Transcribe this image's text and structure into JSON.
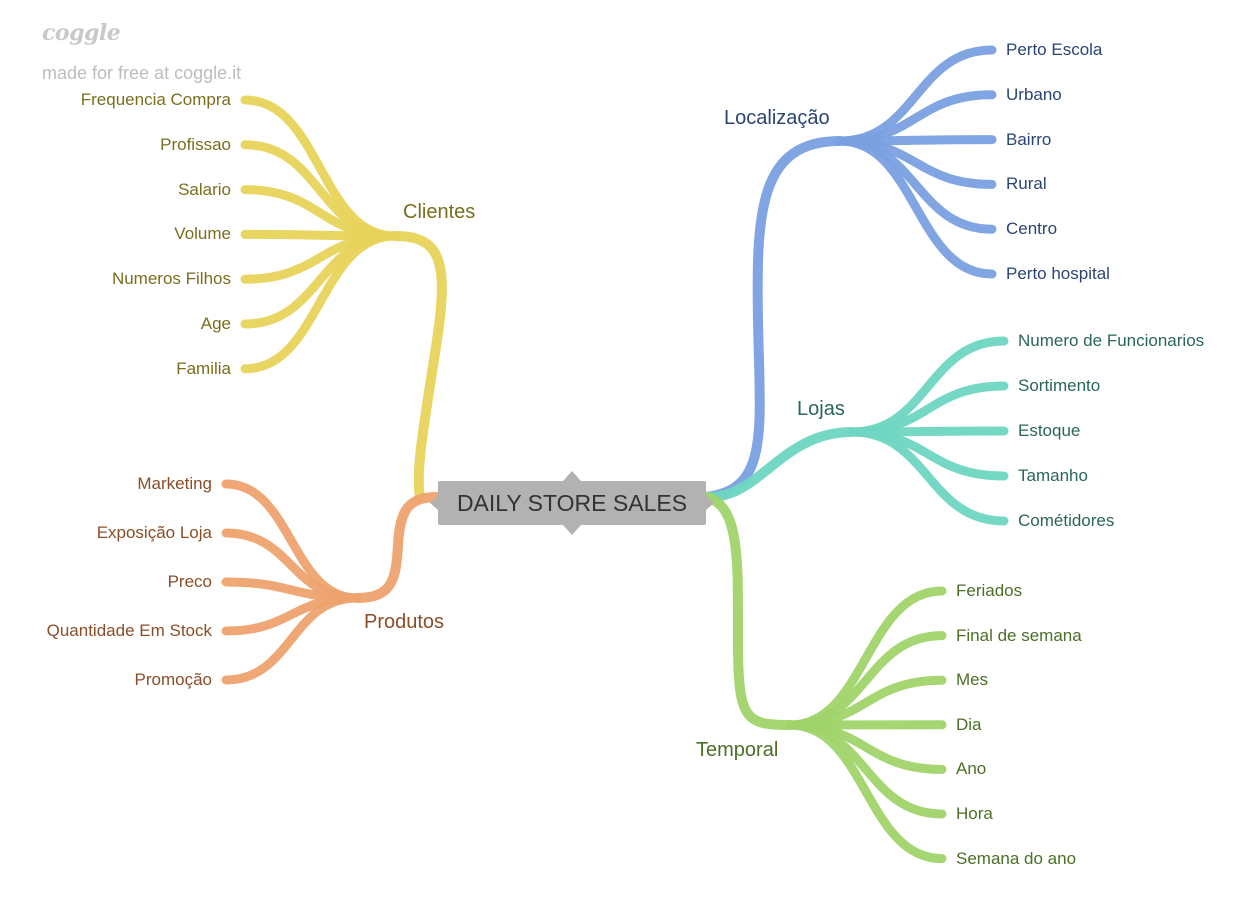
{
  "watermark": {
    "logo": "coggle",
    "subtitle": "made for free at coggle.it"
  },
  "central": {
    "title": "DAILY STORE SALES",
    "color": "#b2b2b2"
  },
  "branches": {
    "clientes": {
      "label": "Clientes",
      "color": "#e8d35a",
      "text_color": "#7a6e1e",
      "leaves": [
        "Frequencia Compra",
        "Profissao",
        "Salario",
        "Volume",
        "Numeros Filhos",
        "Age",
        "Familia"
      ]
    },
    "produtos": {
      "label": "Produtos",
      "color": "#eda26e",
      "text_color": "#8a4e28",
      "leaves": [
        "Marketing",
        "Exposição Loja",
        "Preco",
        "Quantidade Em Stock",
        "Promoção"
      ]
    },
    "localizacao": {
      "label": "Localização",
      "color": "#79a0e0",
      "text_color": "#2b4474",
      "leaves": [
        "Perto Escola",
        "Urbano",
        "Bairro",
        "Rural",
        "Centro",
        "Perto hospital"
      ]
    },
    "lojas": {
      "label": "Lojas",
      "color": "#6ed6c2",
      "text_color": "#2a6659",
      "leaves": [
        "Numero de Funcionarios",
        "Sortimento",
        "Estoque",
        "Tamanho",
        "Cométidores"
      ]
    },
    "temporal": {
      "label": "Temporal",
      "color": "#a0d46a",
      "text_color": "#4d6e27",
      "leaves": [
        "Feriados",
        "Final de semana",
        "Mes",
        "Dia",
        "Ano",
        "Hora",
        "Semana do ano"
      ]
    }
  }
}
